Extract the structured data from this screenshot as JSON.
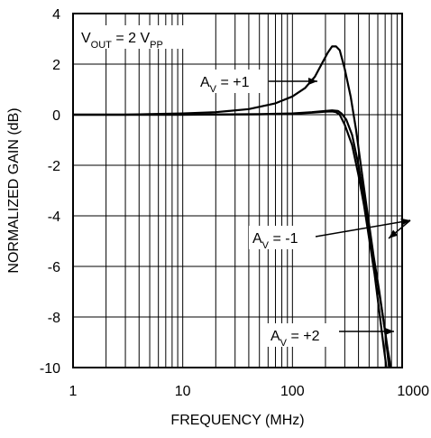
{
  "chart_data": {
    "type": "line",
    "xlabel": "FREQUENCY (MHz)",
    "ylabel": "NORMALIZED GAIN (dB)",
    "xscale": "log",
    "xlim": [
      1,
      1000
    ],
    "ylim": [
      -10,
      4
    ],
    "grid": true,
    "colors": {
      "line": "#000000",
      "grid": "#000000",
      "background": "#ffffff"
    },
    "x_ticks": [
      "1",
      "10",
      "100",
      "1000"
    ],
    "y_ticks": [
      "4",
      "2",
      "0",
      "-2",
      "-4",
      "-6",
      "-8",
      "-10"
    ],
    "condition": {
      "prefix": "V",
      "sub1": "OUT",
      "mid": " = 2 V",
      "sub2": "PP"
    },
    "annotations": [
      {
        "prefix": "A",
        "sub": "V",
        "suffix": " = +1"
      },
      {
        "prefix": "A",
        "sub": "V",
        "suffix": " = -1"
      },
      {
        "prefix": "A",
        "sub": "V",
        "suffix": " = +2"
      }
    ],
    "series": [
      {
        "x": [
          1,
          3,
          5,
          10,
          20,
          40,
          70,
          100,
          130,
          160,
          190,
          210,
          230,
          250,
          270,
          300,
          340,
          380,
          420,
          480,
          550,
          620,
          700,
          760
        ],
        "y": [
          0,
          0,
          0.02,
          0.05,
          0.1,
          0.22,
          0.45,
          0.72,
          1.05,
          1.5,
          2.1,
          2.45,
          2.7,
          2.7,
          2.55,
          1.8,
          0.7,
          -0.6,
          -2.0,
          -3.8,
          -5.6,
          -7.0,
          -8.6,
          -10
        ]
      },
      {
        "x": [
          1,
          10,
          50,
          100,
          150,
          200,
          230,
          260,
          280,
          310,
          350,
          400,
          450,
          500,
          560,
          620,
          680,
          740,
          790
        ],
        "y": [
          0,
          0,
          0.02,
          0.05,
          0.1,
          0.15,
          0.17,
          0.15,
          0.05,
          -0.2,
          -0.8,
          -2.0,
          -3.3,
          -4.6,
          -5.9,
          -7.1,
          -8.2,
          -9.3,
          -10
        ]
      },
      {
        "x": [
          1,
          10,
          50,
          100,
          150,
          200,
          230,
          250,
          270,
          300,
          350,
          400,
          450,
          500,
          560,
          620,
          680,
          720
        ],
        "y": [
          0,
          0,
          0.01,
          0.04,
          0.08,
          0.12,
          0.13,
          0.1,
          0.0,
          -0.4,
          -1.2,
          -2.4,
          -3.6,
          -4.9,
          -6.3,
          -7.8,
          -9.2,
          -10
        ]
      }
    ]
  }
}
